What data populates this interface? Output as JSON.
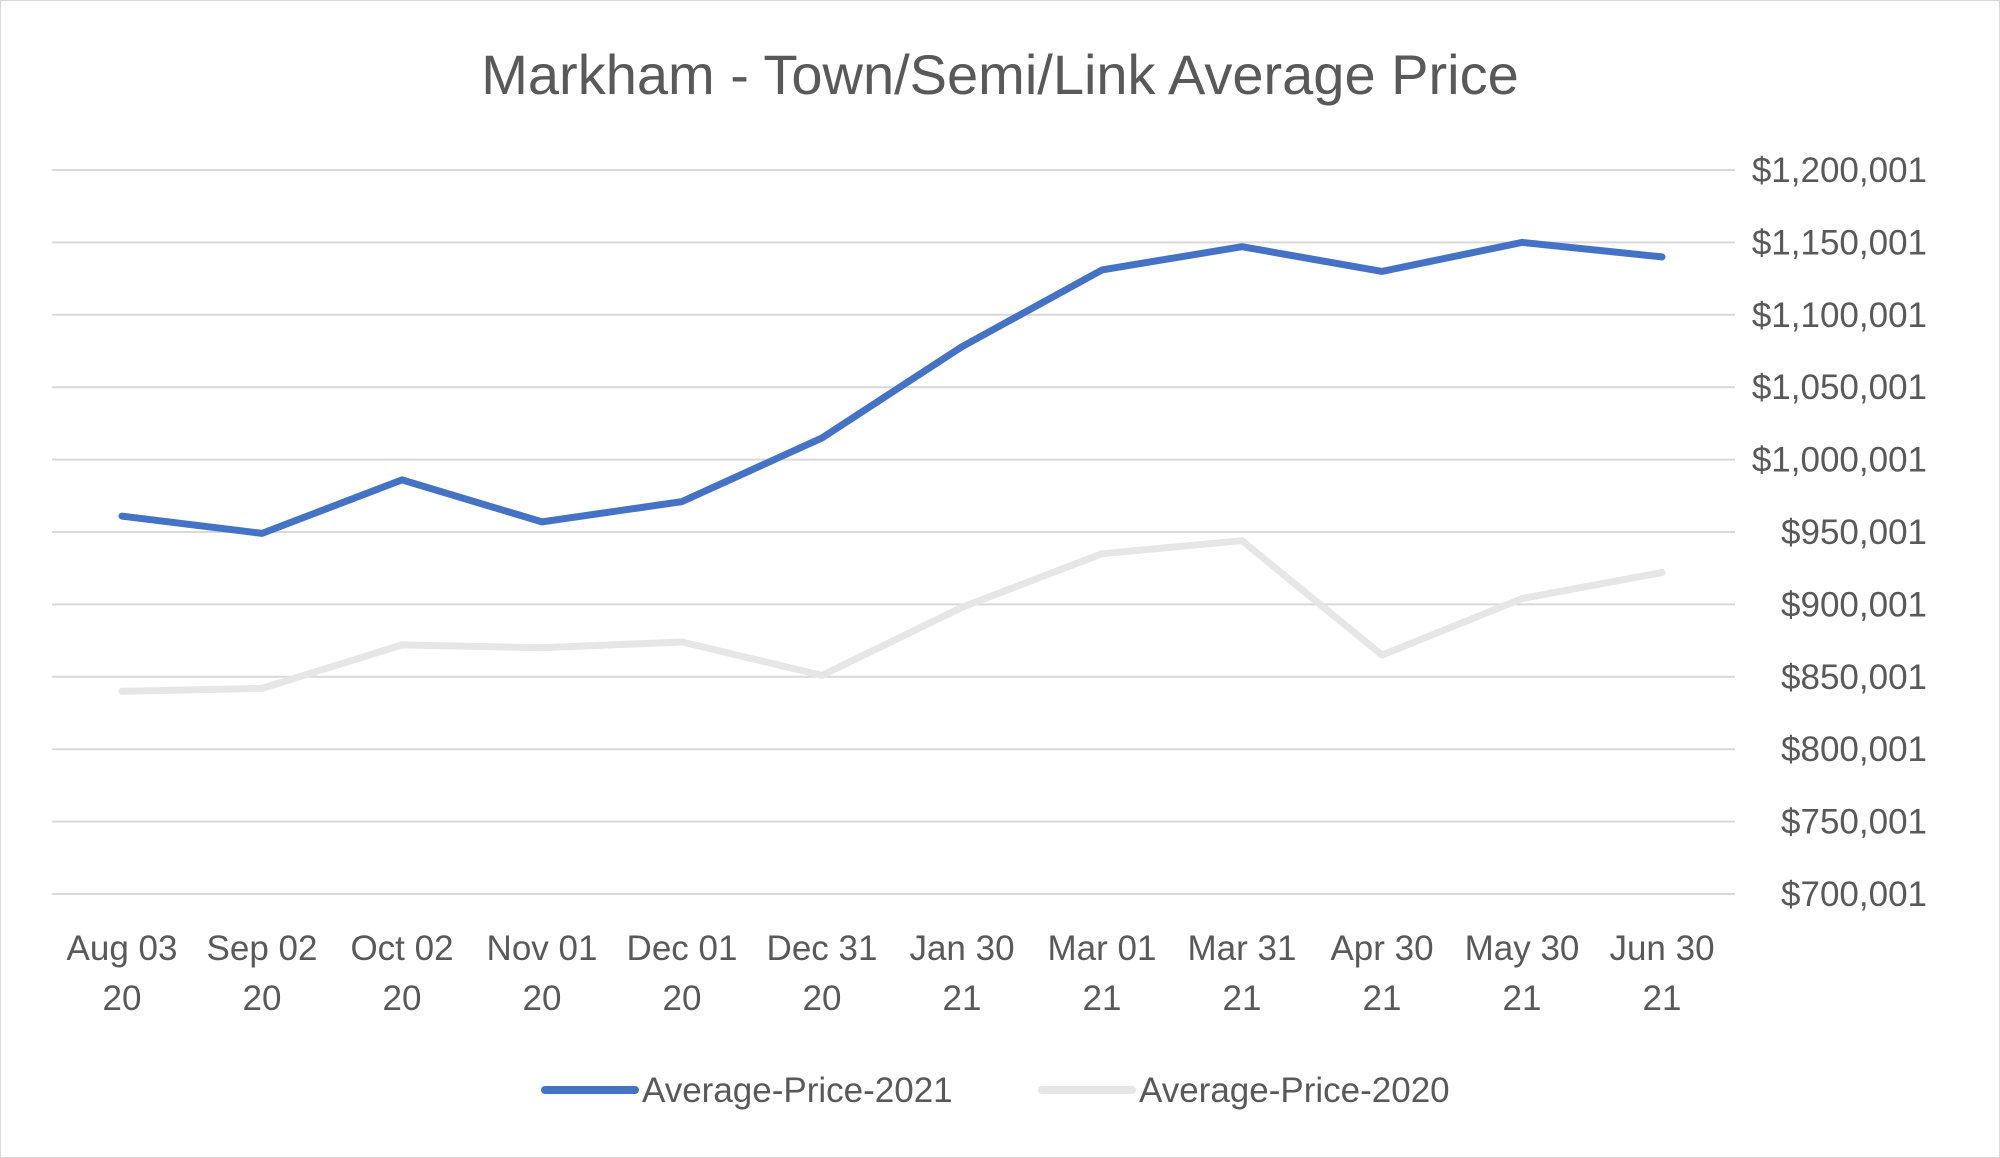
{
  "chart_data": {
    "type": "line",
    "title": "Markham - Town/Semi/Link Average Price",
    "categories": [
      [
        "Aug 03",
        "20"
      ],
      [
        "Sep 02",
        "20"
      ],
      [
        "Oct 02",
        "20"
      ],
      [
        "Nov 01",
        "20"
      ],
      [
        "Dec 01",
        "20"
      ],
      [
        "Dec 31",
        "20"
      ],
      [
        "Jan 30",
        "21"
      ],
      [
        "Mar 01",
        "21"
      ],
      [
        "Mar 31",
        "21"
      ],
      [
        "Apr 30",
        "21"
      ],
      [
        "May 30",
        "21"
      ],
      [
        "Jun 30",
        "21"
      ]
    ],
    "y_ticks": [
      700001,
      750001,
      800001,
      850001,
      900001,
      950001,
      1000001,
      1050001,
      1100001,
      1150001,
      1200001
    ],
    "y_tick_labels": [
      "$700,001",
      "$750,001",
      "$800,001",
      "$850,001",
      "$900,001",
      "$950,001",
      "$1,000,001",
      "$1,050,001",
      "$1,100,001",
      "$1,150,001",
      "$1,200,001"
    ],
    "ylim": [
      700001,
      1200001
    ],
    "y_axis_side": "right",
    "grid": true,
    "legend_position": "bottom",
    "series": [
      {
        "name": "Average-Price-2021",
        "color": "#4472c4",
        "values": [
          961000,
          949000,
          986000,
          957000,
          971000,
          1015000,
          1078000,
          1131000,
          1147000,
          1130000,
          1150000,
          1140000
        ]
      },
      {
        "name": "Average-Price-2020",
        "color": "#e7e6e6",
        "values": [
          840000,
          842000,
          872000,
          870000,
          874000,
          851000,
          898000,
          935000,
          944000,
          865000,
          904000,
          922000
        ]
      }
    ]
  }
}
